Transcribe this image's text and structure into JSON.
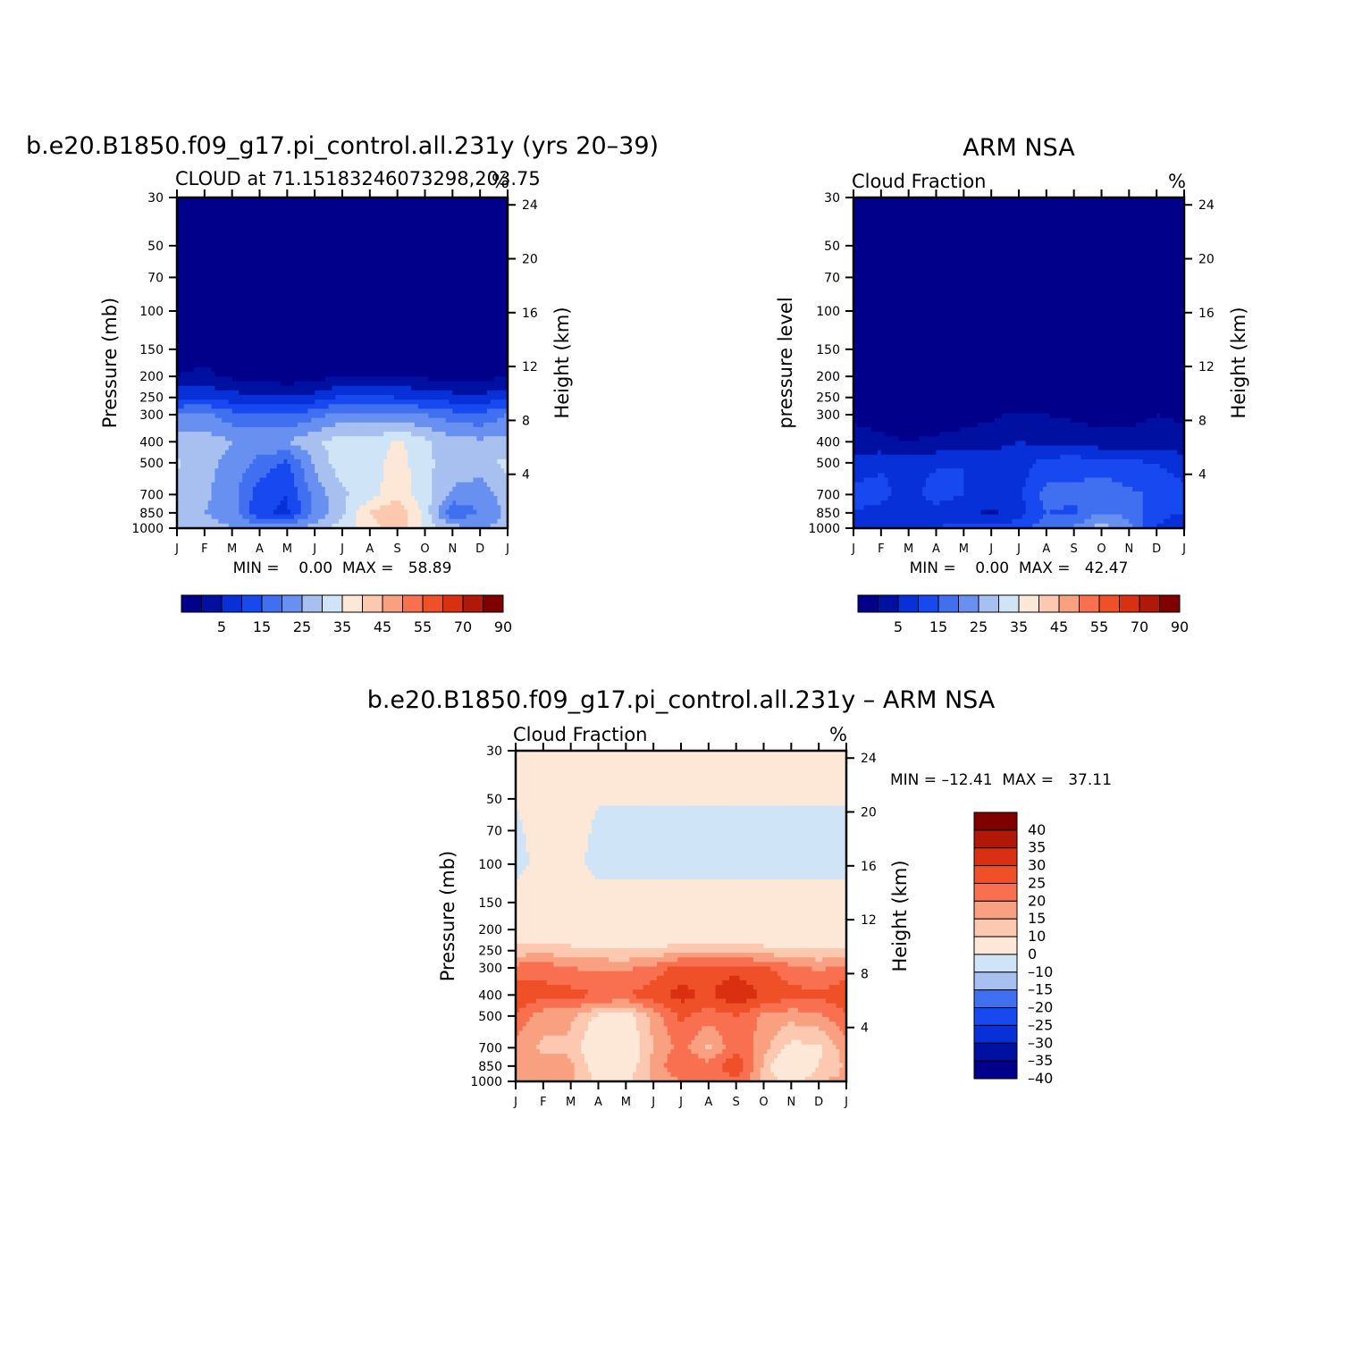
{
  "months": [
    "J",
    "F",
    "M",
    "A",
    "M",
    "J",
    "J",
    "A",
    "S",
    "O",
    "N",
    "D",
    "J"
  ],
  "pressure_ticks": [
    30,
    50,
    70,
    100,
    150,
    200,
    250,
    300,
    400,
    500,
    700,
    850,
    1000
  ],
  "height_ticks": [
    24,
    20,
    16,
    12,
    8,
    4
  ],
  "colors": {
    "abs": [
      "#00008a",
      "#0010a0",
      "#0830d8",
      "#1848f0",
      "#4070f0",
      "#6890f0",
      "#a8c0f0",
      "#d0e4f8",
      "#fde8d8",
      "#fdc8b0",
      "#f8a080",
      "#f87050",
      "#f05028",
      "#d83010",
      "#b01808",
      "#800000"
    ],
    "diff": [
      "#00008a",
      "#0010a0",
      "#0830d8",
      "#1848f0",
      "#4070f0",
      "#a8c0f0",
      "#d0e4f8",
      "#fde8d8",
      "#fdc8b0",
      "#f8a080",
      "#f87050",
      "#f05028",
      "#d83010",
      "#b01808",
      "#800000"
    ]
  },
  "panels": {
    "model": {
      "suptitle": "b.e20.B1850.f09_g17.pi_control.all.231y (yrs 20–39)",
      "left_title": "CLOUD at 71.15183246073298,203.75",
      "units": "%",
      "ylabel": "Pressure (mb)",
      "ylabel_right": "Height (km)",
      "minmax": "MIN =    0.00  MAX =   58.89",
      "colorbar_labels": [
        "5",
        "15",
        "25",
        "35",
        "45",
        "55",
        "70",
        "90"
      ]
    },
    "obs": {
      "suptitle": "ARM NSA",
      "left_title": "Cloud Fraction",
      "units": "%",
      "ylabel": "pressure level",
      "ylabel_right": "Height (km)",
      "minmax": "MIN =    0.00  MAX =   42.47",
      "colorbar_labels": [
        "5",
        "15",
        "25",
        "35",
        "45",
        "55",
        "70",
        "90"
      ]
    },
    "diff": {
      "suptitle": "b.e20.B1850.f09_g17.pi_control.all.231y – ARM NSA",
      "left_title": "Cloud Fraction",
      "units": "%",
      "ylabel": "Pressure (mb)",
      "ylabel_right": "Height (km)",
      "minmax": "MIN = –12.41  MAX =   37.11",
      "colorbar_labels": [
        "40",
        "35",
        "30",
        "25",
        "20",
        "15",
        "10",
        "0",
        "–10",
        "–15",
        "–20",
        "–25",
        "–30",
        "–35",
        "–40"
      ]
    }
  },
  "chart_data": [
    {
      "type": "heatmap",
      "title": "b.e20.B1850.f09_g17.pi_control.all.231y (yrs 20–39)",
      "subtitle": "CLOUD at 71.15183246073298,203.75",
      "units": "%",
      "x": [
        "J",
        "F",
        "M",
        "A",
        "M",
        "J",
        "J",
        "A",
        "S",
        "O",
        "N",
        "D",
        "J"
      ],
      "y_pressure_mb": [
        30,
        100,
        200,
        250,
        300,
        400,
        500,
        700,
        850,
        1000
      ],
      "xlabel": "",
      "ylabel": "Pressure (mb)",
      "ylabel_right": "Height (km)",
      "levels": [
        0,
        5,
        10,
        15,
        20,
        25,
        30,
        35,
        40,
        45,
        50,
        55,
        60,
        70,
        80,
        90
      ],
      "min": 0.0,
      "max": 58.89,
      "z": [
        [
          0,
          0,
          0,
          0,
          0,
          0,
          0,
          0,
          0,
          0,
          0,
          0,
          0
        ],
        [
          0,
          0,
          0,
          0,
          0,
          0,
          0,
          0,
          0,
          0,
          0,
          0,
          0
        ],
        [
          5,
          6,
          4,
          3,
          2,
          3,
          5,
          5,
          5,
          4,
          3,
          3,
          5
        ],
        [
          14,
          15,
          12,
          11,
          10,
          12,
          16,
          16,
          15,
          14,
          12,
          11,
          14
        ],
        [
          25,
          26,
          22,
          21,
          20,
          23,
          27,
          27,
          26,
          25,
          22,
          21,
          25
        ],
        [
          32,
          33,
          30,
          29,
          30,
          34,
          38,
          36,
          41,
          36,
          32,
          31,
          32
        ],
        [
          36,
          31,
          29,
          23,
          19,
          31,
          38,
          37,
          43,
          36,
          33,
          34,
          36
        ],
        [
          33,
          31,
          27,
          17,
          15,
          27,
          34,
          38,
          43,
          37,
          29,
          26,
          33
        ],
        [
          31,
          30,
          28,
          16,
          14,
          26,
          34,
          45,
          50,
          38,
          20,
          26,
          31
        ],
        [
          31,
          32,
          30,
          28,
          28,
          32,
          38,
          42,
          50,
          38,
          32,
          30,
          31
        ]
      ]
    },
    {
      "type": "heatmap",
      "title": "ARM NSA",
      "subtitle": "Cloud Fraction",
      "units": "%",
      "x": [
        "J",
        "F",
        "M",
        "A",
        "M",
        "J",
        "J",
        "A",
        "S",
        "O",
        "N",
        "D",
        "J"
      ],
      "y_pressure_mb": [
        30,
        100,
        200,
        250,
        300,
        400,
        500,
        700,
        850,
        1000
      ],
      "xlabel": "",
      "ylabel": "pressure level",
      "ylabel_right": "Height (km)",
      "levels": [
        0,
        5,
        10,
        15,
        20,
        25,
        30,
        35,
        40,
        45,
        50,
        55,
        60,
        70,
        80,
        90
      ],
      "min": 0.0,
      "max": 42.47,
      "z": [
        [
          0,
          0,
          0,
          0,
          0,
          0,
          0,
          0,
          0,
          0,
          0,
          0,
          0
        ],
        [
          0,
          0,
          0,
          0,
          0,
          0,
          0,
          0,
          0,
          0,
          0,
          0,
          0
        ],
        [
          0,
          0,
          0,
          0,
          0,
          0,
          0,
          0,
          0,
          0,
          0,
          0,
          0
        ],
        [
          0,
          0,
          0,
          0,
          0,
          0,
          0,
          0,
          0,
          0,
          0,
          0,
          0
        ],
        [
          4,
          3,
          2,
          2,
          3,
          4,
          6,
          5,
          4,
          3,
          3,
          5,
          4
        ],
        [
          7,
          6,
          5,
          6,
          7,
          8,
          10,
          9,
          8,
          7,
          7,
          8,
          7
        ],
        [
          12,
          14,
          13,
          14,
          15,
          14,
          12,
          17,
          18,
          17,
          16,
          15,
          12
        ],
        [
          17,
          17,
          12,
          18,
          15,
          12,
          14,
          22,
          21,
          24,
          21,
          19,
          17
        ],
        [
          15,
          13,
          12,
          12,
          11,
          9,
          13,
          20,
          19,
          25,
          24,
          16,
          15
        ],
        [
          12,
          12,
          14,
          15,
          17,
          16,
          18,
          23,
          26,
          33,
          26,
          15,
          12
        ]
      ]
    },
    {
      "type": "heatmap",
      "title": "b.e20.B1850.f09_g17.pi_control.all.231y – ARM NSA",
      "subtitle": "Cloud Fraction",
      "units": "%",
      "x": [
        "J",
        "F",
        "M",
        "A",
        "M",
        "J",
        "J",
        "A",
        "S",
        "O",
        "N",
        "D",
        "J"
      ],
      "y_pressure_mb": [
        30,
        100,
        200,
        250,
        300,
        400,
        500,
        700,
        850,
        1000
      ],
      "xlabel": "",
      "ylabel": "Pressure (mb)",
      "ylabel_right": "Height (km)",
      "levels": [
        -40,
        -35,
        -30,
        -25,
        -20,
        -15,
        -10,
        0,
        10,
        15,
        20,
        25,
        30,
        35,
        40
      ],
      "min": -12.41,
      "max": 37.11,
      "z": [
        [
          1,
          1,
          1,
          1,
          1,
          1,
          1,
          1,
          1,
          1,
          1,
          1,
          1
        ],
        [
          -1,
          1,
          1,
          -1,
          -1,
          -1,
          -1,
          -1,
          -1,
          -1,
          -1,
          -1,
          -1
        ],
        [
          3,
          3,
          3,
          3,
          3,
          3,
          3,
          3,
          3,
          3,
          3,
          3,
          3
        ],
        [
          12,
          13,
          12,
          11,
          10,
          11,
          13,
          13,
          13,
          12,
          11,
          10,
          12
        ],
        [
          22,
          23,
          20,
          19,
          19,
          22,
          27,
          28,
          28,
          26,
          22,
          19,
          22
        ],
        [
          29,
          27,
          27,
          25,
          25,
          28,
          32,
          29,
          35,
          29,
          27,
          26,
          29
        ],
        [
          24,
          17,
          16,
          9,
          6,
          17,
          26,
          22,
          25,
          19,
          17,
          19,
          24
        ],
        [
          18,
          14,
          14,
          3,
          4,
          15,
          22,
          14,
          24,
          17,
          8,
          9,
          18
        ],
        [
          16,
          17,
          16,
          6,
          5,
          17,
          25,
          22,
          29,
          14,
          -1,
          10,
          16
        ],
        [
          16,
          17,
          16,
          9,
          9,
          16,
          20,
          21,
          24,
          14,
          7,
          15,
          16
        ]
      ]
    }
  ]
}
